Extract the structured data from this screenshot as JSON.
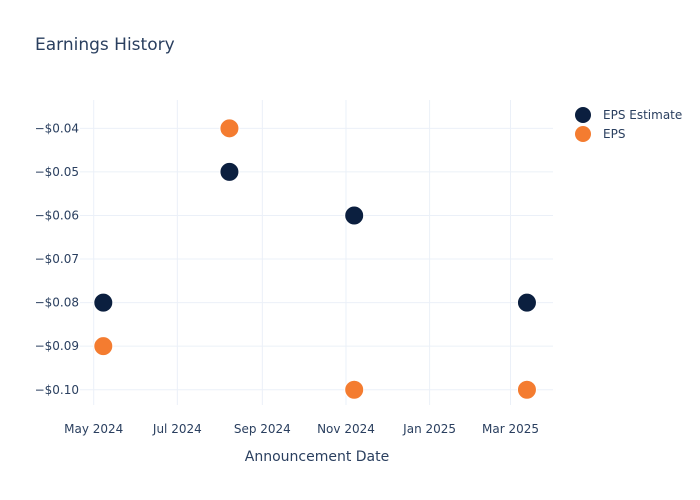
{
  "chart_data": {
    "type": "scatter",
    "title": "Earnings History",
    "xlabel": "Announcement Date",
    "ylabel": "",
    "x_ticks": [
      {
        "date": "2024-05-01",
        "label": "May 2024"
      },
      {
        "date": "2024-07-01",
        "label": "Jul 2024"
      },
      {
        "date": "2024-09-01",
        "label": "Sep 2024"
      },
      {
        "date": "2024-11-01",
        "label": "Nov 2024"
      },
      {
        "date": "2025-01-01",
        "label": "Jan 2025"
      },
      {
        "date": "2025-03-01",
        "label": "Mar 2025"
      }
    ],
    "y_ticks": [
      {
        "value": -0.04,
        "label": "−$0.04"
      },
      {
        "value": -0.05,
        "label": "−$0.05"
      },
      {
        "value": -0.06,
        "label": "−$0.06"
      },
      {
        "value": -0.07,
        "label": "−$0.07"
      },
      {
        "value": -0.08,
        "label": "−$0.08"
      },
      {
        "value": -0.09,
        "label": "−$0.09"
      },
      {
        "value": -0.1,
        "label": "−$0.10"
      }
    ],
    "xlim": [
      "2024-04-21",
      "2025-04-01"
    ],
    "ylim": [
      -0.1035,
      -0.0335
    ],
    "grid": true,
    "legend_position": "top-right",
    "series": [
      {
        "name": "EPS Estimate",
        "color": "#0b1f3f",
        "points": [
          {
            "x": "2024-05-08",
            "y": -0.08
          },
          {
            "x": "2024-08-08",
            "y": -0.05
          },
          {
            "x": "2024-11-07",
            "y": -0.06
          },
          {
            "x": "2025-03-13",
            "y": -0.08
          }
        ]
      },
      {
        "name": "EPS",
        "color": "#f47c30",
        "points": [
          {
            "x": "2024-05-08",
            "y": -0.09
          },
          {
            "x": "2024-08-08",
            "y": -0.04
          },
          {
            "x": "2024-11-07",
            "y": -0.1
          },
          {
            "x": "2025-03-13",
            "y": -0.1
          }
        ]
      }
    ]
  }
}
